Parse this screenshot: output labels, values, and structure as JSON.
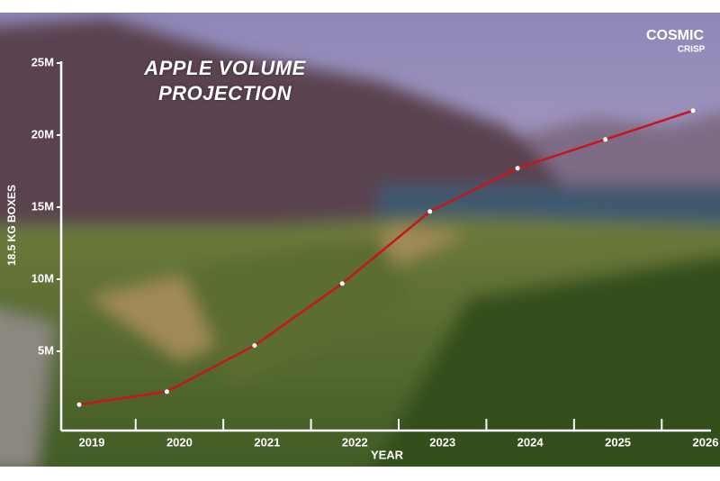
{
  "chart_data": {
    "type": "line",
    "title": "APPLE VOLUME PROJECTION",
    "brand": [
      "COSMIC",
      "CRISP"
    ],
    "x_label": "YEAR",
    "y_label": "18.5 KG BOXES",
    "categories": [
      "2019",
      "2020",
      "2021",
      "2022",
      "2023",
      "2024",
      "2025",
      "2026"
    ],
    "values": [
      1300000,
      2200000,
      5400000,
      9700000,
      14700000,
      17700000,
      19700000,
      21700000
    ],
    "color": "#c8141c",
    "ylim": [
      0,
      25000000
    ],
    "yticks": [
      {
        "value": 5000000,
        "label": "5M"
      },
      {
        "value": 10000000,
        "label": "10M"
      },
      {
        "value": 15000000,
        "label": "15M"
      },
      {
        "value": 20000000,
        "label": "20M"
      },
      {
        "value": 25000000,
        "label": "25M"
      }
    ]
  }
}
